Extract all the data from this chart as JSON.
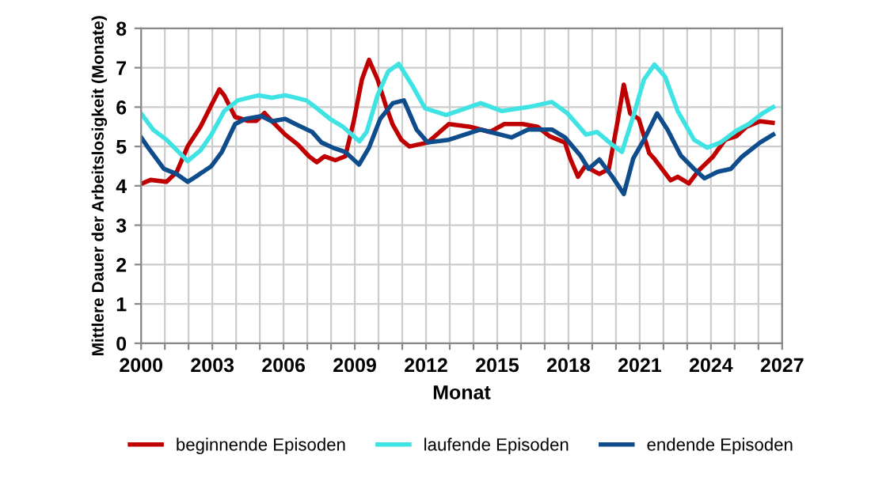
{
  "chart_data": {
    "type": "line",
    "xlabel": "Monat",
    "ylabel": "Mittlere Dauer der Arbeitslosigkeit (Monate)",
    "xlim": [
      2000,
      2027
    ],
    "xticks": [
      2000,
      {
        "value": 2001,
        "label": null
      },
      {
        "value": 2002,
        "label": null
      },
      2003,
      {
        "value": 2004,
        "label": null
      },
      {
        "value": 2005,
        "label": null
      },
      2006,
      {
        "value": 2007,
        "label": null
      },
      {
        "value": 2008,
        "label": null
      },
      2009,
      {
        "value": 2010,
        "label": null
      },
      {
        "value": 2011,
        "label": null
      },
      2012,
      {
        "value": 2013,
        "label": null
      },
      {
        "value": 2014,
        "label": null
      },
      2015,
      {
        "value": 2016,
        "label": null
      },
      {
        "value": 2017,
        "label": null
      },
      2018,
      {
        "value": 2019,
        "label": null
      },
      {
        "value": 2020,
        "label": null
      },
      2021,
      {
        "value": 2022,
        "label": null
      },
      {
        "value": 2023,
        "label": null
      },
      2024,
      {
        "value": 2025,
        "label": null
      },
      {
        "value": 2026,
        "label": null
      },
      2027
    ],
    "ylim": [
      0,
      8
    ],
    "yticks": [
      0,
      1,
      2,
      3,
      4,
      5,
      6,
      7,
      8
    ],
    "grid": true,
    "legend": "bottom",
    "marker": "none",
    "line_style": "solid",
    "series": [
      {
        "name": "beginnende Episoden",
        "color": "#c00000",
        "x": [
          2000,
          2000.4,
          2001.07,
          2001.5,
          2001.96,
          2002.5,
          2002.96,
          2003.3,
          2003.5,
          2003.96,
          2004.5,
          2004.85,
          2005.2,
          2005.5,
          2006.07,
          2006.6,
          2007.07,
          2007.4,
          2007.73,
          2008.18,
          2008.6,
          2008.96,
          2009.3,
          2009.6,
          2009.96,
          2010.3,
          2010.6,
          2010.96,
          2011.3,
          2012.07,
          2012.96,
          2013.85,
          2014.7,
          2015.3,
          2016.07,
          2016.7,
          2017.2,
          2017.85,
          2018.07,
          2018.4,
          2018.7,
          2019.3,
          2019.7,
          2020.07,
          2020.33,
          2020.6,
          2020.96,
          2021.4,
          2021.6,
          2022.3,
          2022.6,
          2023.07,
          2023.5,
          2024.07,
          2024.6,
          2025.07,
          2025.5,
          2026.07,
          2026.6
        ],
        "values": [
          4.05,
          4.15,
          4.1,
          4.35,
          5.0,
          5.5,
          6.05,
          6.45,
          6.3,
          5.75,
          5.65,
          5.65,
          5.85,
          5.65,
          5.3,
          5.05,
          4.75,
          4.6,
          4.75,
          4.65,
          4.75,
          5.65,
          6.7,
          7.2,
          6.7,
          6.05,
          5.55,
          5.17,
          5.0,
          5.1,
          5.57,
          5.5,
          5.37,
          5.57,
          5.57,
          5.5,
          5.26,
          5.1,
          4.7,
          4.23,
          4.5,
          4.3,
          4.43,
          5.64,
          6.57,
          5.84,
          5.7,
          4.83,
          4.7,
          4.14,
          4.23,
          4.06,
          4.4,
          4.73,
          5.17,
          5.26,
          5.5,
          5.64,
          5.6
        ]
      },
      {
        "name": "laufende Episoden",
        "color": "#3fe3e3",
        "x": [
          2000,
          2000.5,
          2001.07,
          2001.96,
          2002.5,
          2002.96,
          2003.5,
          2004.07,
          2004.96,
          2005.5,
          2006.07,
          2006.96,
          2007.4,
          2007.96,
          2008.5,
          2009.2,
          2009.5,
          2009.96,
          2010.4,
          2010.85,
          2011.4,
          2011.96,
          2012.85,
          2014.3,
          2015.2,
          2016.3,
          2017.3,
          2017.96,
          2018.74,
          2019.2,
          2019.85,
          2020.25,
          2020.73,
          2021.18,
          2021.62,
          2022.07,
          2022.6,
          2023.29,
          2023.84,
          2024.4,
          2025.07,
          2025.6,
          2026.17,
          2026.62
        ],
        "values": [
          5.84,
          5.43,
          5.17,
          4.63,
          4.9,
          5.3,
          5.9,
          6.17,
          6.3,
          6.24,
          6.3,
          6.17,
          5.97,
          5.7,
          5.5,
          5.13,
          5.37,
          6.3,
          6.9,
          7.1,
          6.57,
          5.97,
          5.8,
          6.1,
          5.9,
          6.0,
          6.13,
          5.84,
          5.3,
          5.37,
          5.04,
          4.86,
          5.77,
          6.7,
          7.08,
          6.77,
          5.9,
          5.17,
          4.97,
          5.1,
          5.4,
          5.57,
          5.84,
          6.0
        ]
      },
      {
        "name": "endende Episoden",
        "color": "#0f4c8c",
        "x": [
          2000,
          2000.3,
          2000.96,
          2001.5,
          2001.96,
          2002.3,
          2002.96,
          2003.4,
          2003.96,
          2004.4,
          2005.07,
          2005.5,
          2006.07,
          2006.5,
          2007.2,
          2007.6,
          2008.07,
          2008.6,
          2009.18,
          2009.6,
          2010.07,
          2010.6,
          2011.07,
          2011.6,
          2012.07,
          2012.96,
          2014.3,
          2015.6,
          2016.3,
          2017.3,
          2017.85,
          2018.5,
          2018.85,
          2019.3,
          2019.85,
          2020.33,
          2020.73,
          2021.18,
          2021.73,
          2022.17,
          2022.73,
          2023.29,
          2023.73,
          2024.29,
          2024.84,
          2025.29,
          2026.07,
          2026.62
        ],
        "values": [
          5.23,
          4.97,
          4.43,
          4.3,
          4.1,
          4.23,
          4.5,
          4.86,
          5.57,
          5.7,
          5.77,
          5.64,
          5.7,
          5.57,
          5.37,
          5.1,
          4.97,
          4.86,
          4.54,
          4.97,
          5.7,
          6.1,
          6.17,
          5.43,
          5.1,
          5.17,
          5.43,
          5.23,
          5.43,
          5.43,
          5.23,
          4.77,
          4.43,
          4.67,
          4.23,
          3.79,
          4.7,
          5.17,
          5.84,
          5.43,
          4.77,
          4.43,
          4.19,
          4.36,
          4.43,
          4.73,
          5.1,
          5.3
        ]
      }
    ]
  }
}
